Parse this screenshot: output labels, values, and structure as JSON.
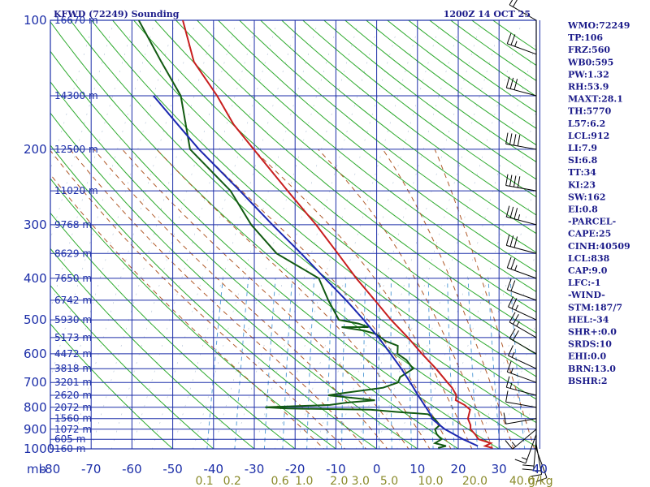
{
  "header": {
    "title": "KFWD (72249) Sounding",
    "time": "1200Z 14 OCT 25"
  },
  "indices": [
    "WMO:72249",
    "TP:106",
    "FRZ:560",
    "WB0:595",
    "PW:1.32",
    "RH:53.9",
    "MAXT:28.1",
    "TH:5770",
    "L57:6.2",
    "LCL:912",
    "LI:7.9",
    "SI:6.8",
    "TT:34",
    "KI:23",
    "SW:162",
    "EI:0.8",
    "-PARCEL-",
    "CAPE:25",
    "CINH:40509",
    "LCL:838",
    "CAP:9.0",
    "LFC:-1",
    "-WIND-",
    "STM:187/7",
    "HEL:-34",
    "SHR+:0.0",
    "SRDS:10",
    "EHI:0.0",
    "BRN:13.0",
    "BSHR:2"
  ],
  "colors": {
    "grid": "#1c2ea8",
    "dry_adiabat": "#2eaa2e",
    "moist_adiabat": "#b05a2a",
    "mixing_ratio": "#5aa0d8",
    "temperature": "#c81e1e",
    "dewpoint": "#125a12",
    "parcel": "#1c28b0",
    "wind": "#000000"
  },
  "chart_data": {
    "type": "skew-t",
    "title": "KFWD (72249) Sounding",
    "subtitle": "1200Z 14 OCT 25",
    "xlabel": "mb",
    "x_axis_unit_label": "g/kg",
    "ylim_pressure_mb": [
      1000,
      100
    ],
    "pressure_ticks": [
      100,
      200,
      300,
      400,
      500,
      600,
      700,
      800,
      900,
      1000
    ],
    "temperature_ticks": [
      -80,
      -70,
      -60,
      -50,
      -40,
      -30,
      -20,
      -10,
      0,
      10,
      20,
      30,
      40
    ],
    "mixing_ratio_ticks": [
      "0.1",
      "0.2",
      "0.6",
      "1.0",
      "2.0",
      "3.0",
      "5.0",
      "10.0",
      "20.0",
      "40.0"
    ],
    "height_labels": [
      {
        "p": 100,
        "label": "16670 m"
      },
      {
        "p": 150,
        "label": "14300 m"
      },
      {
        "p": 200,
        "label": "12500 m"
      },
      {
        "p": 250,
        "label": "11020 m"
      },
      {
        "p": 300,
        "label": "9768 m"
      },
      {
        "p": 350,
        "label": "8629 m"
      },
      {
        "p": 400,
        "label": "7650 m"
      },
      {
        "p": 450,
        "label": "6742 m"
      },
      {
        "p": 500,
        "label": "5930 m"
      },
      {
        "p": 550,
        "label": "5173 m"
      },
      {
        "p": 600,
        "label": "4472 m"
      },
      {
        "p": 650,
        "label": "3818 m"
      },
      {
        "p": 700,
        "label": "3201 m"
      },
      {
        "p": 750,
        "label": "2620 m"
      },
      {
        "p": 800,
        "label": "2072 m"
      },
      {
        "p": 850,
        "label": "1560 m"
      },
      {
        "p": 900,
        "label": "1072 m"
      },
      {
        "p": 950,
        "label": "605 m"
      },
      {
        "p": 1000,
        "label": "160 m"
      }
    ],
    "series": [
      {
        "name": "Temperature",
        "points": [
          [
            995,
            28.3
          ],
          [
            985,
            26.4
          ],
          [
            970,
            27.6
          ],
          [
            950,
            24.3
          ],
          [
            925,
            23.1
          ],
          [
            900,
            21.6
          ],
          [
            880,
            21.3
          ],
          [
            850,
            20.2
          ],
          [
            810,
            20.1
          ],
          [
            790,
            18.4
          ],
          [
            770,
            15.9
          ],
          [
            750,
            15.7
          ],
          [
            720,
            14.1
          ],
          [
            700,
            12.6
          ],
          [
            650,
            8.8
          ],
          [
            600,
            4.3
          ],
          [
            550,
            -0.3
          ],
          [
            500,
            -5.7
          ],
          [
            450,
            -11.1
          ],
          [
            400,
            -17.2
          ],
          [
            350,
            -23.5
          ],
          [
            300,
            -30.9
          ],
          [
            250,
            -40.3
          ],
          [
            200,
            -51.6
          ],
          [
            175,
            -58.3
          ],
          [
            150,
            -64.4
          ],
          [
            125,
            -72.5
          ],
          [
            100,
            -78.2
          ]
        ]
      },
      {
        "name": "Dewpoint",
        "points": [
          [
            995,
            15.0
          ],
          [
            985,
            16.8
          ],
          [
            970,
            13.9
          ],
          [
            950,
            15.2
          ],
          [
            925,
            13.7
          ],
          [
            900,
            12.9
          ],
          [
            880,
            13.8
          ],
          [
            850,
            12.0
          ],
          [
            830,
            10.1
          ],
          [
            820,
            2.3
          ],
          [
            810,
            -4.3
          ],
          [
            805,
            -24.8
          ],
          [
            800,
            -30.3
          ],
          [
            790,
            -14.6
          ],
          [
            780,
            -10.6
          ],
          [
            770,
            -3.9
          ],
          [
            750,
            -15.7
          ],
          [
            740,
            -11.8
          ],
          [
            720,
            -2.8
          ],
          [
            700,
            0.5
          ],
          [
            680,
            0.6
          ],
          [
            650,
            3.2
          ],
          [
            620,
            0.9
          ],
          [
            600,
            -1.7
          ],
          [
            575,
            -2.2
          ],
          [
            560,
            -5.6
          ],
          [
            540,
            -8.3
          ],
          [
            530,
            -11.5
          ],
          [
            520,
            -17.3
          ],
          [
            520,
            -10.7
          ],
          [
            510,
            -13.5
          ],
          [
            500,
            -18.5
          ],
          [
            450,
            -22.5
          ],
          [
            400,
            -26.4
          ],
          [
            350,
            -38.5
          ],
          [
            300,
            -46.8
          ],
          [
            250,
            -54.3
          ],
          [
            200,
            -67.2
          ],
          [
            150,
            -73.3
          ],
          [
            125,
            -80.5
          ],
          [
            100,
            -89.0
          ]
        ]
      },
      {
        "name": "Parcel",
        "points": [
          [
            985,
            24.6
          ],
          [
            950,
            20.5
          ],
          [
            900,
            15.3
          ],
          [
            850,
            11.3
          ],
          [
            838,
            11.1
          ],
          [
            800,
            9.1
          ],
          [
            750,
            6.3
          ],
          [
            700,
            3.5
          ],
          [
            650,
            0.3
          ],
          [
            600,
            -3.4
          ],
          [
            550,
            -7.5
          ],
          [
            500,
            -12.4
          ],
          [
            450,
            -18.1
          ],
          [
            400,
            -24.9
          ],
          [
            350,
            -32.5
          ],
          [
            300,
            -41.6
          ],
          [
            250,
            -52.0
          ],
          [
            200,
            -65.0
          ],
          [
            175,
            -72.0
          ],
          [
            150,
            -80.0
          ]
        ]
      }
    ],
    "wind_barbs": [
      {
        "p": 1000,
        "dir": 160,
        "kt": 10
      },
      {
        "p": 975,
        "dir": 170,
        "kt": 15
      },
      {
        "p": 950,
        "dir": 185,
        "kt": 20
      },
      {
        "p": 925,
        "dir": 200,
        "kt": 15
      },
      {
        "p": 900,
        "dir": 230,
        "kt": 15
      },
      {
        "p": 850,
        "dir": 260,
        "kt": 10
      },
      {
        "p": 800,
        "dir": 280,
        "kt": 10
      },
      {
        "p": 750,
        "dir": 285,
        "kt": 15
      },
      {
        "p": 700,
        "dir": 290,
        "kt": 15
      },
      {
        "p": 650,
        "dir": 295,
        "kt": 15
      },
      {
        "p": 600,
        "dir": 300,
        "kt": 20
      },
      {
        "p": 550,
        "dir": 300,
        "kt": 25
      },
      {
        "p": 500,
        "dir": 295,
        "kt": 25
      },
      {
        "p": 450,
        "dir": 290,
        "kt": 20
      },
      {
        "p": 400,
        "dir": 290,
        "kt": 25
      },
      {
        "p": 350,
        "dir": 285,
        "kt": 30
      },
      {
        "p": 300,
        "dir": 285,
        "kt": 35
      },
      {
        "p": 250,
        "dir": 280,
        "kt": 40
      },
      {
        "p": 200,
        "dir": 280,
        "kt": 40
      },
      {
        "p": 150,
        "dir": 285,
        "kt": 30
      },
      {
        "p": 120,
        "dir": 290,
        "kt": 25
      },
      {
        "p": 100,
        "dir": 300,
        "kt": 20
      }
    ]
  }
}
